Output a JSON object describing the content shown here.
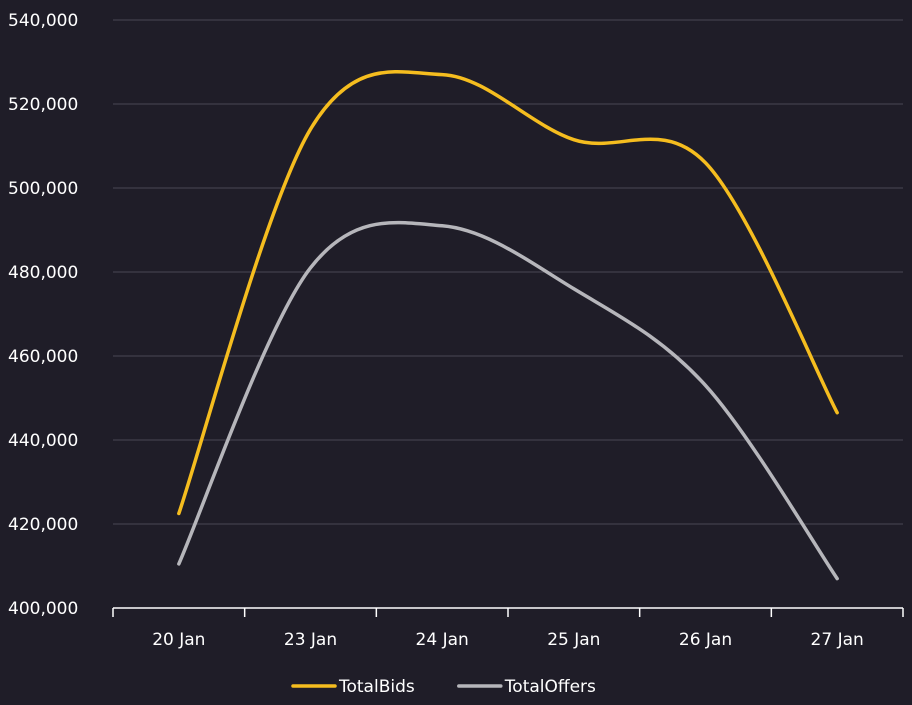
{
  "chart_data": {
    "type": "line",
    "categories": [
      "20 Jan",
      "23 Jan",
      "24 Jan",
      "25 Jan",
      "26 Jan",
      "27 Jan"
    ],
    "series": [
      {
        "name": "TotalBids",
        "values": [
          422500,
          514000,
          527000,
          511500,
          506000,
          446500
        ],
        "color": "#f5bd1f"
      },
      {
        "name": "TotalOffers",
        "values": [
          410500,
          481000,
          491000,
          476000,
          453000,
          407000
        ],
        "color": "#b6b6bb"
      }
    ],
    "y_ticks": [
      "400,000",
      "420,000",
      "440,000",
      "460,000",
      "480,000",
      "500,000",
      "520,000",
      "540,000"
    ],
    "ylim": [
      400000,
      540000
    ],
    "grid": true,
    "legend_position": "bottom-center",
    "colors": {
      "background": "#1f1d28",
      "grid": "#4a4854",
      "axis": "#ffffff"
    }
  }
}
